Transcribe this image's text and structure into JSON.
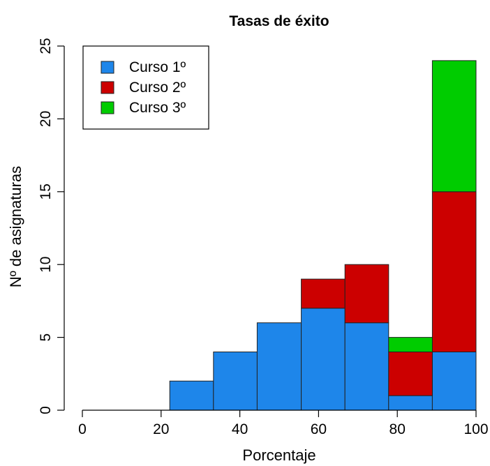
{
  "chart_data": {
    "type": "bar",
    "stacked": true,
    "title": "Tasas de éxito",
    "xlabel": "Porcentaje",
    "ylabel": "Nº de asignaturas",
    "xlim": [
      0,
      100
    ],
    "ylim": [
      0,
      25
    ],
    "x_ticks": [
      "0",
      "20",
      "40",
      "60",
      "80",
      "100"
    ],
    "y_ticks": [
      "0",
      "5",
      "10",
      "15",
      "20",
      "25"
    ],
    "bin_edges": [
      22.2,
      33.3,
      44.4,
      55.6,
      66.7,
      77.8,
      88.9,
      100
    ],
    "series": [
      {
        "name": "Curso 1º",
        "color": "#1e86ea",
        "values": [
          2,
          4,
          6,
          7,
          6,
          1,
          4
        ]
      },
      {
        "name": "Curso 2º",
        "color": "#cc0000",
        "values": [
          0,
          0,
          0,
          2,
          4,
          3,
          11
        ]
      },
      {
        "name": "Curso 3º",
        "color": "#00cc00",
        "values": [
          0,
          0,
          0,
          0,
          0,
          1,
          9
        ]
      }
    ],
    "legend_position": "top-left",
    "grid": false
  }
}
